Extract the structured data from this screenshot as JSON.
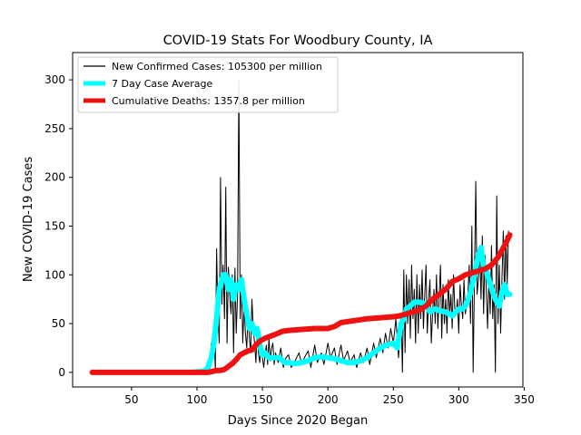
{
  "chart_data": {
    "type": "line",
    "title": "COVID-19 Stats For Woodbury County, IA",
    "xlabel": "Days Since 2020 Began",
    "ylabel": "New COVID-19 Cases",
    "xlim": [
      5,
      349
    ],
    "ylim": [
      -15,
      328
    ],
    "x_ticks": [
      50,
      100,
      150,
      200,
      250,
      300,
      350
    ],
    "y_ticks": [
      0,
      50,
      100,
      150,
      200,
      250,
      300
    ],
    "grid": false,
    "legend_position": "upper left",
    "series": [
      {
        "name": "New Confirmed Cases: 105300 per million",
        "color": "#000000",
        "points": [
          [
            20,
            0
          ],
          [
            40,
            0
          ],
          [
            60,
            0
          ],
          [
            80,
            0
          ],
          [
            92,
            0
          ],
          [
            95,
            2
          ],
          [
            100,
            0
          ],
          [
            105,
            1
          ],
          [
            107,
            5
          ],
          [
            108,
            3
          ],
          [
            109,
            12
          ],
          [
            110,
            4
          ],
          [
            111,
            30
          ],
          [
            112,
            15
          ],
          [
            113,
            45
          ],
          [
            114,
            2
          ],
          [
            115,
            127
          ],
          [
            116,
            60
          ],
          [
            117,
            30
          ],
          [
            118,
            200
          ],
          [
            119,
            70
          ],
          [
            120,
            110
          ],
          [
            121,
            55
          ],
          [
            122,
            190
          ],
          [
            123,
            30
          ],
          [
            124,
            108
          ],
          [
            125,
            80
          ],
          [
            126,
            60
          ],
          [
            127,
            100
          ],
          [
            128,
            20
          ],
          [
            129,
            107
          ],
          [
            130,
            40
          ],
          [
            131,
            80
          ],
          [
            132,
            300
          ],
          [
            133,
            55
          ],
          [
            134,
            100
          ],
          [
            135,
            30
          ],
          [
            136,
            70
          ],
          [
            137,
            40
          ],
          [
            138,
            25
          ],
          [
            139,
            60
          ],
          [
            140,
            35
          ],
          [
            141,
            20
          ],
          [
            142,
            75
          ],
          [
            143,
            45
          ],
          [
            144,
            30
          ],
          [
            145,
            10
          ],
          [
            146,
            45
          ],
          [
            147,
            20
          ],
          [
            148,
            10
          ],
          [
            149,
            30
          ],
          [
            150,
            15
          ],
          [
            151,
            5
          ],
          [
            152,
            18
          ],
          [
            153,
            28
          ],
          [
            154,
            8
          ],
          [
            155,
            35
          ],
          [
            156,
            12
          ],
          [
            157,
            25
          ],
          [
            158,
            30
          ],
          [
            159,
            8
          ],
          [
            160,
            20
          ],
          [
            162,
            10
          ],
          [
            164,
            25
          ],
          [
            166,
            5
          ],
          [
            168,
            15
          ],
          [
            170,
            18
          ],
          [
            172,
            5
          ],
          [
            175,
            12
          ],
          [
            178,
            20
          ],
          [
            180,
            8
          ],
          [
            182,
            15
          ],
          [
            185,
            22
          ],
          [
            187,
            5
          ],
          [
            190,
            28
          ],
          [
            192,
            10
          ],
          [
            195,
            20
          ],
          [
            197,
            8
          ],
          [
            200,
            30
          ],
          [
            202,
            15
          ],
          [
            205,
            25
          ],
          [
            207,
            8
          ],
          [
            210,
            28
          ],
          [
            212,
            12
          ],
          [
            215,
            22
          ],
          [
            217,
            10
          ],
          [
            220,
            18
          ],
          [
            222,
            5
          ],
          [
            225,
            20
          ],
          [
            227,
            10
          ],
          [
            230,
            25
          ],
          [
            232,
            8
          ],
          [
            235,
            30
          ],
          [
            237,
            15
          ],
          [
            240,
            35
          ],
          [
            242,
            20
          ],
          [
            244,
            40
          ],
          [
            246,
            25
          ],
          [
            248,
            45
          ],
          [
            250,
            30
          ],
          [
            252,
            55
          ],
          [
            254,
            15
          ],
          [
            256,
            60
          ],
          [
            257,
            0
          ],
          [
            258,
            105
          ],
          [
            259,
            20
          ],
          [
            260,
            100
          ],
          [
            261,
            50
          ],
          [
            262,
            95
          ],
          [
            263,
            35
          ],
          [
            264,
            110
          ],
          [
            265,
            55
          ],
          [
            266,
            85
          ],
          [
            267,
            30
          ],
          [
            268,
            100
          ],
          [
            269,
            40
          ],
          [
            270,
            90
          ],
          [
            271,
            55
          ],
          [
            272,
            105
          ],
          [
            273,
            45
          ],
          [
            274,
            80
          ],
          [
            275,
            110
          ],
          [
            276,
            40
          ],
          [
            277,
            75
          ],
          [
            278,
            95
          ],
          [
            279,
            30
          ],
          [
            280,
            60
          ],
          [
            281,
            85
          ],
          [
            282,
            50
          ],
          [
            283,
            100
          ],
          [
            284,
            45
          ],
          [
            285,
            75
          ],
          [
            286,
            110
          ],
          [
            287,
            35
          ],
          [
            288,
            90
          ],
          [
            289,
            50
          ],
          [
            290,
            75
          ],
          [
            291,
            40
          ],
          [
            292,
            95
          ],
          [
            293,
            60
          ],
          [
            294,
            80
          ],
          [
            295,
            45
          ],
          [
            296,
            100
          ],
          [
            297,
            65
          ],
          [
            298,
            60
          ],
          [
            299,
            75
          ],
          [
            300,
            40
          ],
          [
            301,
            90
          ],
          [
            302,
            70
          ],
          [
            303,
            55
          ],
          [
            304,
            95
          ],
          [
            305,
            60
          ],
          [
            306,
            70
          ],
          [
            307,
            80
          ],
          [
            308,
            110
          ],
          [
            309,
            50
          ],
          [
            310,
            150
          ],
          [
            311,
            0
          ],
          [
            312,
            100
          ],
          [
            313,
            196
          ],
          [
            314,
            80
          ],
          [
            315,
            95
          ],
          [
            316,
            130
          ],
          [
            317,
            75
          ],
          [
            318,
            140
          ],
          [
            319,
            60
          ],
          [
            320,
            120
          ],
          [
            321,
            85
          ],
          [
            322,
            45
          ],
          [
            323,
            100
          ],
          [
            324,
            60
          ],
          [
            325,
            130
          ],
          [
            326,
            55
          ],
          [
            327,
            90
          ],
          [
            328,
            0
          ],
          [
            329,
            181
          ],
          [
            330,
            50
          ],
          [
            331,
            110
          ],
          [
            332,
            40
          ],
          [
            333,
            95
          ],
          [
            334,
            145
          ],
          [
            335,
            75
          ],
          [
            336,
            140
          ],
          [
            337,
            90
          ],
          [
            338,
            145
          ]
        ]
      },
      {
        "name": "7 Day Case Average",
        "color": "#00ffff",
        "points": [
          [
            95,
            0
          ],
          [
            105,
            1
          ],
          [
            108,
            4
          ],
          [
            111,
            15
          ],
          [
            113,
            30
          ],
          [
            115,
            55
          ],
          [
            117,
            85
          ],
          [
            120,
            100
          ],
          [
            122,
            100
          ],
          [
            124,
            85
          ],
          [
            126,
            95
          ],
          [
            128,
            75
          ],
          [
            130,
            90
          ],
          [
            132,
            85
          ],
          [
            134,
            95
          ],
          [
            136,
            75
          ],
          [
            138,
            60
          ],
          [
            140,
            45
          ],
          [
            142,
            50
          ],
          [
            144,
            40
          ],
          [
            146,
            45
          ],
          [
            148,
            28
          ],
          [
            150,
            18
          ],
          [
            152,
            20
          ],
          [
            155,
            15
          ],
          [
            160,
            15
          ],
          [
            163,
            15
          ],
          [
            167,
            10
          ],
          [
            170,
            10
          ],
          [
            175,
            9
          ],
          [
            180,
            10
          ],
          [
            185,
            12
          ],
          [
            190,
            15
          ],
          [
            195,
            16
          ],
          [
            200,
            15
          ],
          [
            205,
            14
          ],
          [
            210,
            12
          ],
          [
            215,
            10
          ],
          [
            220,
            10
          ],
          [
            225,
            12
          ],
          [
            230,
            15
          ],
          [
            235,
            20
          ],
          [
            240,
            25
          ],
          [
            245,
            28
          ],
          [
            250,
            30
          ],
          [
            253,
            25
          ],
          [
            256,
            50
          ],
          [
            258,
            55
          ],
          [
            260,
            65
          ],
          [
            263,
            68
          ],
          [
            266,
            72
          ],
          [
            270,
            72
          ],
          [
            275,
            70
          ],
          [
            278,
            62
          ],
          [
            282,
            65
          ],
          [
            286,
            63
          ],
          [
            290,
            62
          ],
          [
            295,
            58
          ],
          [
            300,
            65
          ],
          [
            303,
            65
          ],
          [
            306,
            70
          ],
          [
            309,
            82
          ],
          [
            312,
            100
          ],
          [
            315,
            120
          ],
          [
            317,
            128
          ],
          [
            319,
            108
          ],
          [
            321,
            105
          ],
          [
            324,
            90
          ],
          [
            326,
            82
          ],
          [
            328,
            75
          ],
          [
            331,
            68
          ],
          [
            333,
            82
          ],
          [
            335,
            90
          ],
          [
            337,
            80
          ],
          [
            339,
            80
          ]
        ]
      },
      {
        "name": "Cumulative Deaths: 1357.8 per million",
        "color": "#ee1111",
        "points": [
          [
            20,
            0
          ],
          [
            60,
            0
          ],
          [
            90,
            0
          ],
          [
            100,
            0
          ],
          [
            108,
            0
          ],
          [
            112,
            1
          ],
          [
            115,
            2
          ],
          [
            118,
            2
          ],
          [
            121,
            3
          ],
          [
            124,
            6
          ],
          [
            127,
            9
          ],
          [
            130,
            13
          ],
          [
            133,
            18
          ],
          [
            136,
            20
          ],
          [
            139,
            22
          ],
          [
            142,
            23
          ],
          [
            145,
            28
          ],
          [
            148,
            32
          ],
          [
            152,
            35
          ],
          [
            156,
            37
          ],
          [
            160,
            39
          ],
          [
            165,
            42
          ],
          [
            170,
            43
          ],
          [
            180,
            44
          ],
          [
            190,
            45
          ],
          [
            200,
            45
          ],
          [
            205,
            47
          ],
          [
            210,
            51
          ],
          [
            215,
            52
          ],
          [
            220,
            53
          ],
          [
            225,
            54
          ],
          [
            230,
            55
          ],
          [
            240,
            56
          ],
          [
            250,
            57
          ],
          [
            255,
            58
          ],
          [
            260,
            60
          ],
          [
            265,
            62
          ],
          [
            270,
            64
          ],
          [
            275,
            68
          ],
          [
            280,
            75
          ],
          [
            285,
            80
          ],
          [
            290,
            85
          ],
          [
            295,
            93
          ],
          [
            300,
            96
          ],
          [
            305,
            100
          ],
          [
            310,
            102
          ],
          [
            315,
            104
          ],
          [
            320,
            106
          ],
          [
            325,
            110
          ],
          [
            330,
            118
          ],
          [
            335,
            130
          ],
          [
            339,
            141
          ]
        ]
      }
    ]
  }
}
